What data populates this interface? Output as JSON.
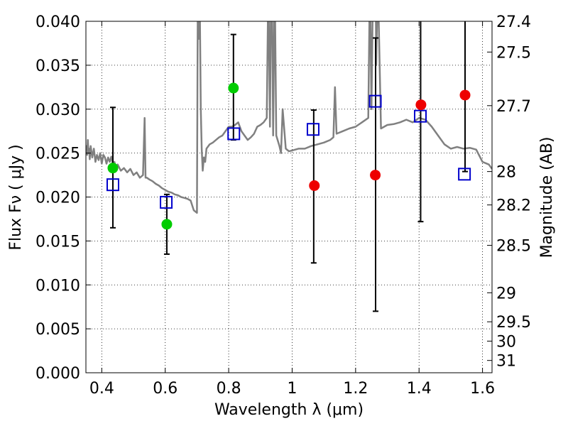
{
  "chart_data": {
    "type": "scatter",
    "xlabel": "Wavelength  λ (μm)",
    "ylabel": "Flux  Fν  ( μJy )",
    "ylabel_right": "Magnitude (AB)",
    "xlim": [
      0.35,
      1.63
    ],
    "ylim": [
      0.0,
      0.04
    ],
    "grid": true,
    "x_ticks": [
      0.4,
      0.6,
      0.8,
      1.0,
      1.2,
      1.4,
      1.6
    ],
    "x_tick_labels": [
      "0.4",
      "0.6",
      "0.8",
      "1",
      "1.2",
      "1.4",
      "1.6"
    ],
    "y_ticks": [
      0.0,
      0.005,
      0.01,
      0.015,
      0.02,
      0.025,
      0.03,
      0.035,
      0.04
    ],
    "y_tick_labels": [
      "0.000",
      "0.005",
      "0.010",
      "0.015",
      "0.020",
      "0.025",
      "0.030",
      "0.035",
      "0.040"
    ],
    "right_ticks": [
      {
        "label": "27.4",
        "flux": 0.04
      },
      {
        "label": "27.5",
        "flux": 0.0365
      },
      {
        "label": "27.7",
        "flux": 0.0304
      },
      {
        "label": "28",
        "flux": 0.0229
      },
      {
        "label": "28.2",
        "flux": 0.0191
      },
      {
        "label": "28.5",
        "flux": 0.0145
      },
      {
        "label": "29",
        "flux": 0.0091
      },
      {
        "label": "29.5",
        "flux": 0.0058
      },
      {
        "label": "30",
        "flux": 0.0036
      },
      {
        "label": "31",
        "flux": 0.0014
      }
    ],
    "colors": {
      "spectrum": "#808080",
      "model": "#0000cc",
      "green": "#00cc00",
      "red": "#ee0000",
      "errorbar": "#000000"
    },
    "spectrum": {
      "x": [
        0.35,
        0.352,
        0.354,
        0.356,
        0.358,
        0.36,
        0.362,
        0.365,
        0.37,
        0.375,
        0.38,
        0.385,
        0.39,
        0.395,
        0.4,
        0.405,
        0.41,
        0.415,
        0.42,
        0.425,
        0.43,
        0.435,
        0.44,
        0.445,
        0.45,
        0.46,
        0.47,
        0.48,
        0.49,
        0.5,
        0.51,
        0.52,
        0.53,
        0.535,
        0.538,
        0.542,
        0.55,
        0.56,
        0.57,
        0.58,
        0.59,
        0.6,
        0.61,
        0.62,
        0.63,
        0.64,
        0.65,
        0.66,
        0.67,
        0.68,
        0.69,
        0.7,
        0.703,
        0.706,
        0.709,
        0.712,
        0.715,
        0.718,
        0.722,
        0.726,
        0.73,
        0.74,
        0.75,
        0.76,
        0.77,
        0.78,
        0.79,
        0.8,
        0.81,
        0.82,
        0.83,
        0.84,
        0.85,
        0.86,
        0.87,
        0.88,
        0.89,
        0.9,
        0.91,
        0.92,
        0.925,
        0.93,
        0.935,
        0.94,
        0.945,
        0.95,
        0.96,
        0.965,
        0.97,
        0.98,
        0.99,
        1.0,
        1.02,
        1.04,
        1.06,
        1.08,
        1.1,
        1.12,
        1.13,
        1.135,
        1.14,
        1.16,
        1.18,
        1.2,
        1.22,
        1.24,
        1.245,
        1.25,
        1.26,
        1.265,
        1.27,
        1.28,
        1.3,
        1.32,
        1.34,
        1.36,
        1.38,
        1.4,
        1.42,
        1.44,
        1.46,
        1.48,
        1.5,
        1.52,
        1.54,
        1.56,
        1.58,
        1.6,
        1.62,
        1.63
      ],
      "flux": [
        0.0252,
        0.0258,
        0.0248,
        0.0265,
        0.025,
        0.0255,
        0.0243,
        0.0258,
        0.0245,
        0.0255,
        0.024,
        0.0248,
        0.0242,
        0.025,
        0.0238,
        0.0248,
        0.0245,
        0.0238,
        0.0245,
        0.024,
        0.0246,
        0.0236,
        0.024,
        0.0232,
        0.0237,
        0.023,
        0.0233,
        0.0228,
        0.0232,
        0.0225,
        0.0228,
        0.0222,
        0.0225,
        0.029,
        0.0222,
        0.0222,
        0.022,
        0.0218,
        0.0215,
        0.0213,
        0.021,
        0.0208,
        0.0206,
        0.0205,
        0.0203,
        0.0202,
        0.02,
        0.0199,
        0.0198,
        0.0196,
        0.0185,
        0.0182,
        0.045,
        0.038,
        0.042,
        0.03,
        0.0255,
        0.023,
        0.0245,
        0.024,
        0.0255,
        0.026,
        0.0262,
        0.0265,
        0.0268,
        0.027,
        0.0275,
        0.028,
        0.028,
        0.0282,
        0.0285,
        0.0275,
        0.027,
        0.0265,
        0.0268,
        0.0272,
        0.028,
        0.0282,
        0.0285,
        0.029,
        0.045,
        0.028,
        0.05,
        0.027,
        0.045,
        0.027,
        0.0258,
        0.025,
        0.03,
        0.0255,
        0.0252,
        0.0253,
        0.0255,
        0.0255,
        0.0258,
        0.026,
        0.0262,
        0.0265,
        0.0268,
        0.0325,
        0.0272,
        0.0275,
        0.0278,
        0.028,
        0.0285,
        0.029,
        0.045,
        0.03,
        0.06,
        0.035,
        0.045,
        0.0278,
        0.0282,
        0.0283,
        0.0285,
        0.0288,
        0.0285,
        0.029,
        0.0288,
        0.028,
        0.027,
        0.026,
        0.0255,
        0.0257,
        0.0255,
        0.0256,
        0.0254,
        0.024,
        0.0237,
        0.0232
      ]
    },
    "model_points": {
      "x": [
        0.435,
        0.603,
        0.816,
        1.066,
        1.262,
        1.404,
        1.543
      ],
      "y": [
        0.0214,
        0.0194,
        0.0272,
        0.0277,
        0.0309,
        0.0292,
        0.0226
      ]
    },
    "green_points": {
      "x": [
        0.435,
        0.605,
        0.815
      ],
      "y": [
        0.0233,
        0.0169,
        0.0324
      ]
    },
    "red_points": {
      "x": [
        1.07,
        1.262,
        1.406,
        1.545
      ],
      "y": [
        0.0213,
        0.0225,
        0.0305,
        0.0316
      ]
    },
    "error_bars": [
      {
        "x": 0.435,
        "low": 0.0165,
        "high": 0.0302
      },
      {
        "x": 0.605,
        "low": 0.0135,
        "high": 0.0203
      },
      {
        "x": 0.815,
        "low": 0.0265,
        "high": 0.0385
      },
      {
        "x": 1.068,
        "low": 0.0125,
        "high": 0.0299
      },
      {
        "x": 1.263,
        "low": 0.007,
        "high": 0.0381
      },
      {
        "x": 1.405,
        "low": 0.0172,
        "high": 0.0409
      },
      {
        "x": 1.545,
        "low": 0.0229,
        "high": 0.041
      }
    ]
  }
}
